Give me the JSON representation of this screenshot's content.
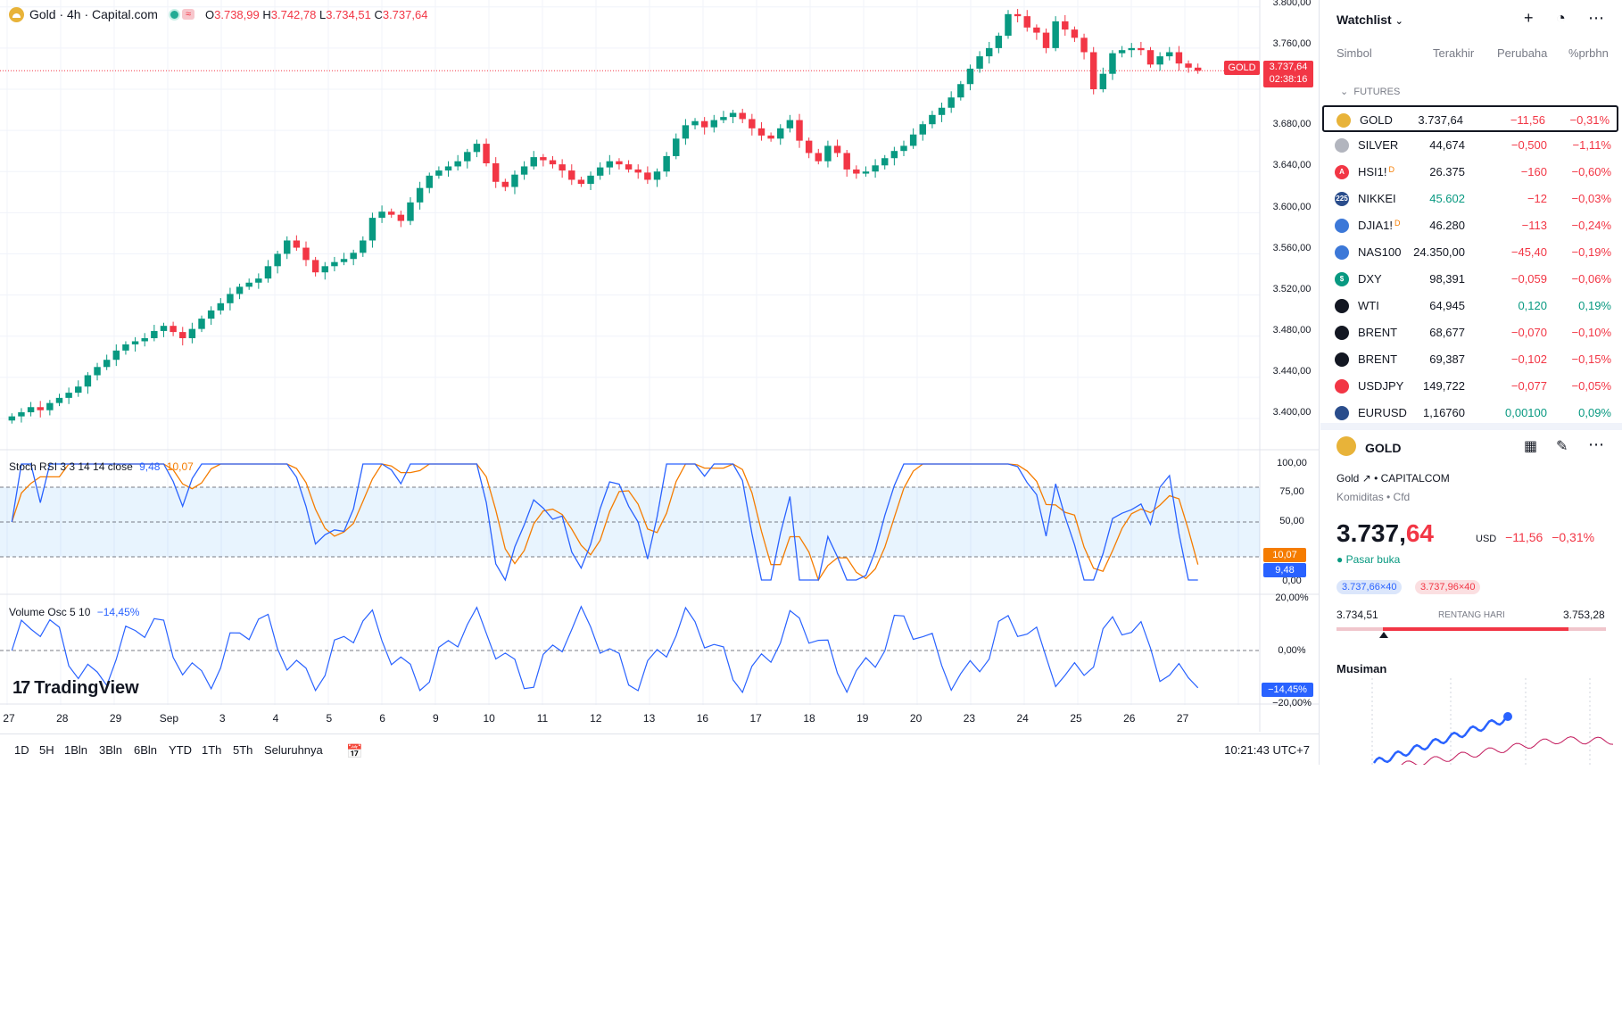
{
  "legend": {
    "title": "Gold · 4h · Capital.com",
    "market_icon": "equal-sign-icon",
    "open_label": "O",
    "open": "3.738,99",
    "high_label": "H",
    "high": "3.742,78",
    "low_label": "L",
    "low": "3.734,51",
    "close_label": "C",
    "close": "3.737,64"
  },
  "price_scale": [
    "3.800,00",
    "3.760,00",
    "3.680,00",
    "3.640,00",
    "3.600,00",
    "3.560,00",
    "3.520,00",
    "3.480,00",
    "3.440,00",
    "3.400,00"
  ],
  "price_tag": {
    "symbol": "GOLD",
    "price": "3.737,64",
    "countdown": "02:38:16"
  },
  "stoch": {
    "label": "Stoch RSI 3 3 14 14 close",
    "k": "9,48",
    "d": "10,07",
    "scale": [
      "100,00",
      "75,00",
      "50,00",
      "0,00"
    ]
  },
  "vol": {
    "label": "Volume Osc 5 10",
    "value": "−14,45%",
    "scale": [
      "20,00%",
      "0,00%",
      "−20,00%"
    ],
    "tag": "−14,45%"
  },
  "dates": [
    "27",
    "28",
    "29",
    "Sep",
    "3",
    "4",
    "5",
    "6",
    "9",
    "10",
    "11",
    "12",
    "13",
    "16",
    "17",
    "18",
    "19",
    "20",
    "23",
    "24",
    "25",
    "26",
    "27"
  ],
  "logo": "TradingView",
  "ranges": [
    "1D",
    "5H",
    "1Bln",
    "3Bln",
    "6Bln",
    "YTD",
    "1Th",
    "5Th",
    "Seluruhnya"
  ],
  "clock": "10:21:43 UTC+7",
  "watchlist": {
    "title": "Watchlist",
    "columns": {
      "symbol": "Simbol",
      "last": "Terakhir",
      "change": "Perubaha",
      "pct": "%prbhn"
    },
    "group": "FUTURES",
    "rows": [
      {
        "symbol": "GOLD",
        "last": "3.737,64",
        "change": "−11,56",
        "pct": "−0,31%",
        "sup": "",
        "color": "#e8b339",
        "icon": "",
        "trend": "neg",
        "selected": true
      },
      {
        "symbol": "SILVER",
        "last": "44,674",
        "change": "−0,500",
        "pct": "−1,11%",
        "sup": "",
        "color": "#b2b5be",
        "icon": "",
        "trend": "neg"
      },
      {
        "symbol": "HSI1!",
        "last": "26.375",
        "change": "−160",
        "pct": "−0,60%",
        "sup": "D",
        "color": "#f23645",
        "icon": "A",
        "trend": "neg"
      },
      {
        "symbol": "NIKKEI",
        "last": "45.602",
        "change": "−12",
        "pct": "−0,03%",
        "sup": "",
        "color": "#2a4d8c",
        "icon": "225",
        "trend": "neg",
        "last_pos": true
      },
      {
        "symbol": "DJIA1!",
        "last": "46.280",
        "change": "−113",
        "pct": "−0,24%",
        "sup": "D",
        "color": "#3c78d8",
        "icon": "",
        "trend": "neg"
      },
      {
        "symbol": "NAS100",
        "last": "24.350,00",
        "change": "−45,40",
        "pct": "−0,19%",
        "sup": "",
        "color": "#3c78d8",
        "icon": "",
        "trend": "neg"
      },
      {
        "symbol": "DXY",
        "last": "98,391",
        "change": "−0,059",
        "pct": "−0,06%",
        "sup": "",
        "color": "#089981",
        "icon": "$",
        "trend": "neg"
      },
      {
        "symbol": "WTI",
        "last": "64,945",
        "change": "0,120",
        "pct": "0,19%",
        "sup": "",
        "color": "#131722",
        "icon": "",
        "trend": "pos"
      },
      {
        "symbol": "BRENT",
        "last": "68,677",
        "change": "−0,070",
        "pct": "−0,10%",
        "sup": "",
        "color": "#131722",
        "icon": "",
        "trend": "neg"
      },
      {
        "symbol": "BRENT",
        "last": "69,387",
        "change": "−0,102",
        "pct": "−0,15%",
        "sup": "",
        "color": "#131722",
        "icon": "",
        "trend": "neg"
      },
      {
        "symbol": "USDJPY",
        "last": "149,722",
        "change": "−0,077",
        "pct": "−0,05%",
        "sup": "",
        "color": "#f23645",
        "icon": "",
        "trend": "neg"
      },
      {
        "symbol": "EURUSD",
        "last": "1,16760",
        "change": "0,00100",
        "pct": "0,09%",
        "sup": "",
        "color": "#2a4d8c",
        "icon": "",
        "trend": "pos"
      }
    ]
  },
  "details": {
    "symbol": "GOLD",
    "name": "Gold",
    "exchange": "CAPITALCOM",
    "category": "Komiditas • Cfd",
    "price_int": "3.737,",
    "price_dec": "64",
    "currency": "USD",
    "change": "−11,56",
    "pct": "−0,31%",
    "status": "Pasar buka",
    "bid": "3.737,66×40",
    "ask": "3.737,96×40",
    "low": "3.734,51",
    "range_label": "RENTANG HARI",
    "high": "3.753,28",
    "seasonal_title": "Musiman"
  },
  "colors": {
    "up": "#089981",
    "down": "#f23645",
    "k_line": "#2962ff",
    "d_line": "#f57c00"
  },
  "chart_data": {
    "type": "candlestick",
    "series_close": [
      3402,
      3406,
      3411,
      3408,
      3415,
      3420,
      3425,
      3431,
      3442,
      3450,
      3457,
      3466,
      3472,
      3475,
      3478,
      3485,
      3490,
      3484,
      3478,
      3487,
      3497,
      3505,
      3512,
      3521,
      3528,
      3532,
      3536,
      3548,
      3560,
      3573,
      3566,
      3554,
      3542,
      3548,
      3552,
      3555,
      3561,
      3573,
      3595,
      3601,
      3598,
      3592,
      3610,
      3624,
      3636,
      3641,
      3645,
      3650,
      3659,
      3667,
      3648,
      3630,
      3625,
      3637,
      3645,
      3654,
      3651,
      3647,
      3641,
      3632,
      3628,
      3636,
      3644,
      3650,
      3647,
      3642,
      3639,
      3632,
      3640,
      3655,
      3672,
      3685,
      3689,
      3683,
      3690,
      3693,
      3697,
      3691,
      3682,
      3675,
      3672,
      3682,
      3690,
      3670,
      3658,
      3650,
      3665,
      3658,
      3642,
      3638,
      3640,
      3646,
      3653,
      3660,
      3665,
      3676,
      3686,
      3695,
      3702,
      3712,
      3725,
      3740,
      3752,
      3760,
      3772,
      3793,
      3791,
      3780,
      3775,
      3760,
      3786,
      3778,
      3770,
      3756,
      3720,
      3735,
      3755,
      3758,
      3760,
      3758,
      3744,
      3752,
      3756,
      3745,
      3741,
      3738
    ]
  }
}
